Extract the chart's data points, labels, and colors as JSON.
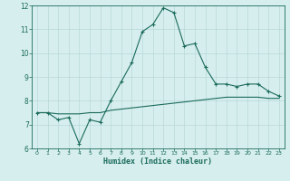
{
  "xlabel": "Humidex (Indice chaleur)",
  "x": [
    0,
    1,
    2,
    3,
    4,
    5,
    6,
    7,
    8,
    9,
    10,
    11,
    12,
    13,
    14,
    15,
    16,
    17,
    18,
    19,
    20,
    21,
    22,
    23
  ],
  "line1": [
    7.5,
    7.5,
    7.2,
    7.3,
    6.2,
    7.2,
    7.1,
    8.0,
    8.8,
    9.6,
    10.9,
    11.2,
    11.9,
    11.7,
    10.3,
    10.4,
    9.4,
    8.7,
    8.7,
    8.6,
    8.7,
    8.7,
    8.4,
    8.2
  ],
  "line2": [
    7.5,
    7.5,
    7.45,
    7.45,
    7.45,
    7.5,
    7.5,
    7.6,
    7.65,
    7.7,
    7.75,
    7.8,
    7.85,
    7.9,
    7.95,
    8.0,
    8.05,
    8.1,
    8.15,
    8.15,
    8.15,
    8.15,
    8.1,
    8.1
  ],
  "line_color": "#1a6b5a",
  "bg_color": "#d6eeee",
  "grid_color": "#b8d8d8",
  "ylim": [
    6,
    12
  ],
  "xlim": [
    -0.5,
    23.5
  ],
  "yticks": [
    6,
    7,
    8,
    9,
    10,
    11,
    12
  ],
  "xticks": [
    0,
    1,
    2,
    3,
    4,
    5,
    6,
    7,
    8,
    9,
    10,
    11,
    12,
    13,
    14,
    15,
    16,
    17,
    18,
    19,
    20,
    21,
    22,
    23
  ]
}
